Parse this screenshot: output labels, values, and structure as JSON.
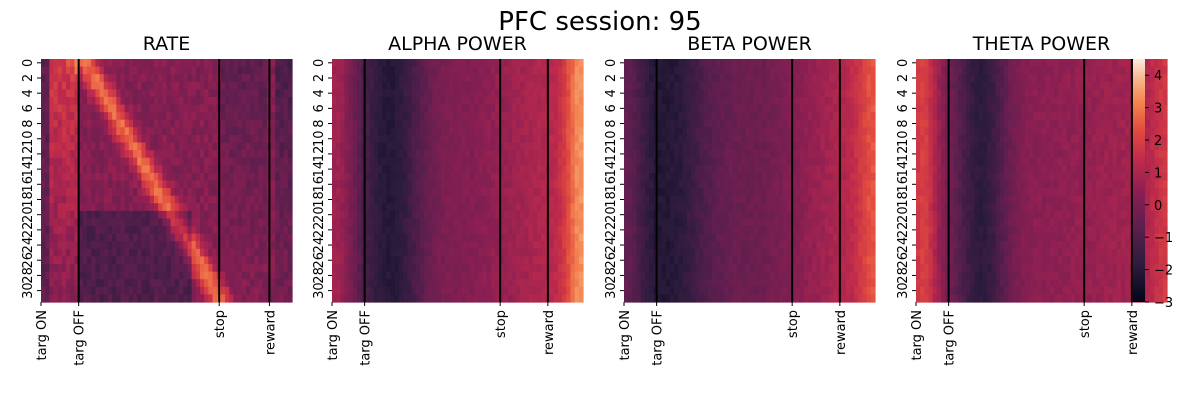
{
  "suptitle": "PFC session: 95",
  "chart_data": {
    "type": "heatmap",
    "n_rows": 32,
    "y_tick_labels": [
      "0",
      "2",
      "4",
      "6",
      "8",
      "10",
      "12",
      "14",
      "16",
      "18",
      "20",
      "22",
      "24",
      "26",
      "28",
      "30"
    ],
    "x_tick_labels": [
      "targ ON",
      "targ OFF",
      "stop",
      "reward"
    ],
    "colorbar": {
      "vmin": -3,
      "vmax": 4.5,
      "ticks": [
        -3,
        -2,
        -1,
        0,
        1,
        2,
        3,
        4
      ],
      "colormap": "rocket"
    },
    "panels": [
      {
        "title": "RATE",
        "events": [
          0,
          0.15,
          0.71,
          0.91
        ]
      },
      {
        "title": "ALPHA POWER",
        "events": [
          0,
          0.13,
          0.67,
          0.86
        ]
      },
      {
        "title": "BETA POWER",
        "events": [
          0,
          0.13,
          0.67,
          0.86
        ]
      },
      {
        "title": "THETA POWER",
        "events": [
          0,
          0.13,
          0.67,
          0.86
        ]
      }
    ]
  }
}
